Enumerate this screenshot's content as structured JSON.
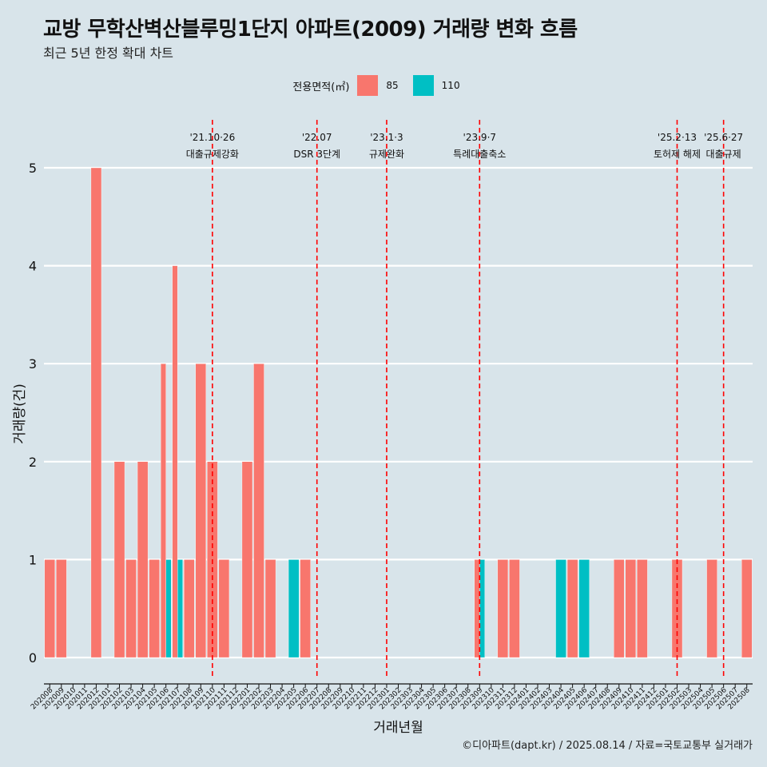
{
  "title": "교방 무학산벽산블루밍1단지 아파트(2009) 거래량 변화 흐름",
  "subtitle": "최근 5년 한정 확대 차트",
  "legend": {
    "title": "전용면적(㎡)",
    "items": [
      {
        "label": "85",
        "color": "#f8766d"
      },
      {
        "label": "110",
        "color": "#00bfc4"
      }
    ]
  },
  "caption": "©디아파트(dapt.kr) / 2025.08.14 / 자료=국토교통부 실거래가",
  "chart_data": {
    "type": "bar",
    "stacking": "dodge",
    "xlabel": "거래년월",
    "ylabel": "거래량(건)",
    "ylim": [
      0,
      5
    ],
    "yticks": [
      0,
      1,
      2,
      3,
      4,
      5
    ],
    "grid": true,
    "legend_position": "top",
    "categories": [
      "202008",
      "202009",
      "202010",
      "202011",
      "202012",
      "202101",
      "202102",
      "202103",
      "202104",
      "202105",
      "202106",
      "202107",
      "202108",
      "202109",
      "202110",
      "202111",
      "202112",
      "202201",
      "202202",
      "202203",
      "202204",
      "202205",
      "202206",
      "202207",
      "202208",
      "202209",
      "202210",
      "202211",
      "202212",
      "202301",
      "202302",
      "202303",
      "202304",
      "202305",
      "202306",
      "202307",
      "202308",
      "202309",
      "202310",
      "202311",
      "202312",
      "202401",
      "202402",
      "202403",
      "202404",
      "202405",
      "202406",
      "202407",
      "202408",
      "202409",
      "202410",
      "202411",
      "202412",
      "202501",
      "202502",
      "202503",
      "202504",
      "202505",
      "202506",
      "202507",
      "202508"
    ],
    "series": [
      {
        "name": "85",
        "color": "#f8766d",
        "values": [
          1,
          1,
          0,
          0,
          5,
          0,
          2,
          1,
          2,
          1,
          3,
          4,
          1,
          3,
          2,
          1,
          0,
          2,
          3,
          1,
          0,
          0,
          1,
          0,
          0,
          0,
          0,
          0,
          0,
          0,
          0,
          0,
          0,
          0,
          0,
          0,
          0,
          1,
          0,
          1,
          1,
          0,
          0,
          0,
          0,
          1,
          0,
          0,
          0,
          1,
          1,
          1,
          0,
          0,
          1,
          0,
          0,
          1,
          0,
          0,
          1
        ]
      },
      {
        "name": "110",
        "color": "#00bfc4",
        "values": [
          0,
          0,
          0,
          0,
          0,
          0,
          0,
          0,
          0,
          0,
          1,
          1,
          0,
          0,
          0,
          0,
          0,
          0,
          0,
          0,
          0,
          1,
          0,
          0,
          0,
          0,
          0,
          0,
          0,
          0,
          0,
          0,
          0,
          0,
          0,
          0,
          0,
          1,
          0,
          0,
          0,
          0,
          0,
          0,
          1,
          0,
          1,
          0,
          0,
          0,
          0,
          0,
          0,
          0,
          0,
          0,
          0,
          0,
          0,
          0,
          0
        ]
      }
    ],
    "annotations": [
      {
        "x": "202110",
        "date": "'21.10·26",
        "label": "대출규제강화"
      },
      {
        "x": "202207",
        "date": "'22.07",
        "label": "DSR 3단계"
      },
      {
        "x": "202301",
        "date": "'23.1·3",
        "label": "규제완화"
      },
      {
        "x": "202309",
        "date": "'23.9·7",
        "label": "특례대출축소"
      },
      {
        "x": "202502",
        "date": "'25.2·13",
        "label": "토허제 해제"
      },
      {
        "x": "202506",
        "date": "'25.6·27",
        "label": "대출규제"
      }
    ],
    "annotation_color": "#ff0000"
  }
}
